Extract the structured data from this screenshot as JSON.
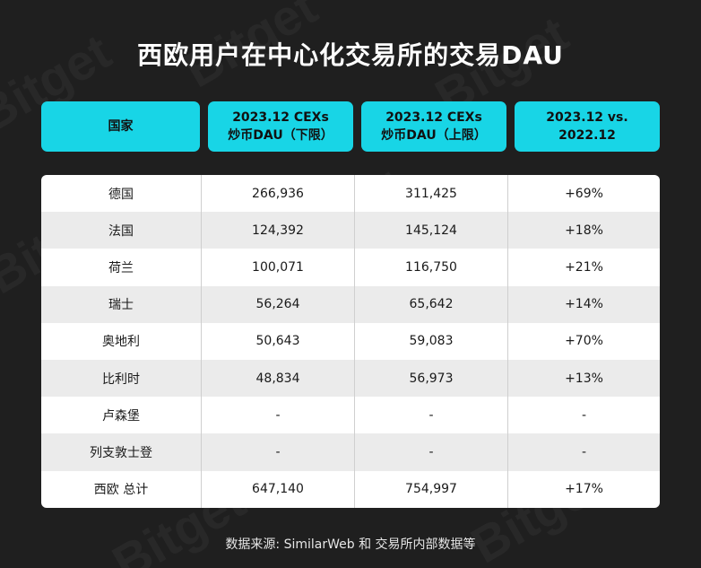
{
  "title": "西欧用户在中心化交易所的交易DAU",
  "watermark_text": "Bitget",
  "colors": {
    "background": "#1f1f1f",
    "header": "#18d5e6",
    "row_alt": "#ebebeb"
  },
  "headers": [
    "国家",
    "2023.12 CEXs\n炒币DAU（下限）",
    "2023.12 CEXs\n炒币DAU（上限）",
    "2023.12 vs.\n2022.12"
  ],
  "rows": [
    [
      "德国",
      "266,936",
      "311,425",
      "+69%"
    ],
    [
      "法国",
      "124,392",
      "145,124",
      "+18%"
    ],
    [
      "荷兰",
      "100,071",
      "116,750",
      "+21%"
    ],
    [
      "瑞士",
      "56,264",
      "65,642",
      "+14%"
    ],
    [
      "奥地利",
      "50,643",
      "59,083",
      "+70%"
    ],
    [
      "比利时",
      "48,834",
      "56,973",
      "+13%"
    ],
    [
      "卢森堡",
      "-",
      "-",
      "-"
    ],
    [
      "列支敦士登",
      "-",
      "-",
      "-"
    ],
    [
      "西欧 总计",
      "647,140",
      "754,997",
      "+17%"
    ]
  ],
  "footer": "数据来源: SimilarWeb 和 交易所内部数据等"
}
